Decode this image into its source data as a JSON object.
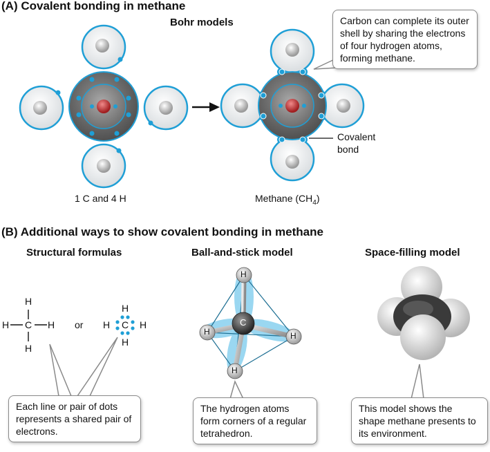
{
  "section_a": {
    "title": "(A)  Covalent bonding in methane",
    "bohr_title": "Bohr models",
    "left_caption": "1 C and 4 H",
    "right_caption_main": "Methane (CH",
    "right_caption_sub": "4",
    "right_caption_end": ")",
    "callout": "Carbon can complete its outer shell by sharing the electrons of four hydrogen atoms, forming methane.",
    "covalent_label_line1": "Covalent",
    "covalent_label_line2": "bond"
  },
  "section_b": {
    "title": "(B)  Additional ways to show covalent bonding in methane",
    "col1_title": "Structural formulas",
    "col2_title": "Ball-and-stick model",
    "col3_title": "Space-filling model",
    "or_label": "or",
    "atom_h": "H",
    "atom_c": "C",
    "callout1": "Each line or pair of dots represents a shared pair of electrons.",
    "callout2": "The hydrogen atoms form corners of a regular tetrahedron.",
    "callout3": "This model shows the shape methane presents to its environment."
  },
  "colors": {
    "accent_blue": "#1f9fd6",
    "shell_gray": "#6f6f6f",
    "nucleus_red": "#c0282a"
  }
}
